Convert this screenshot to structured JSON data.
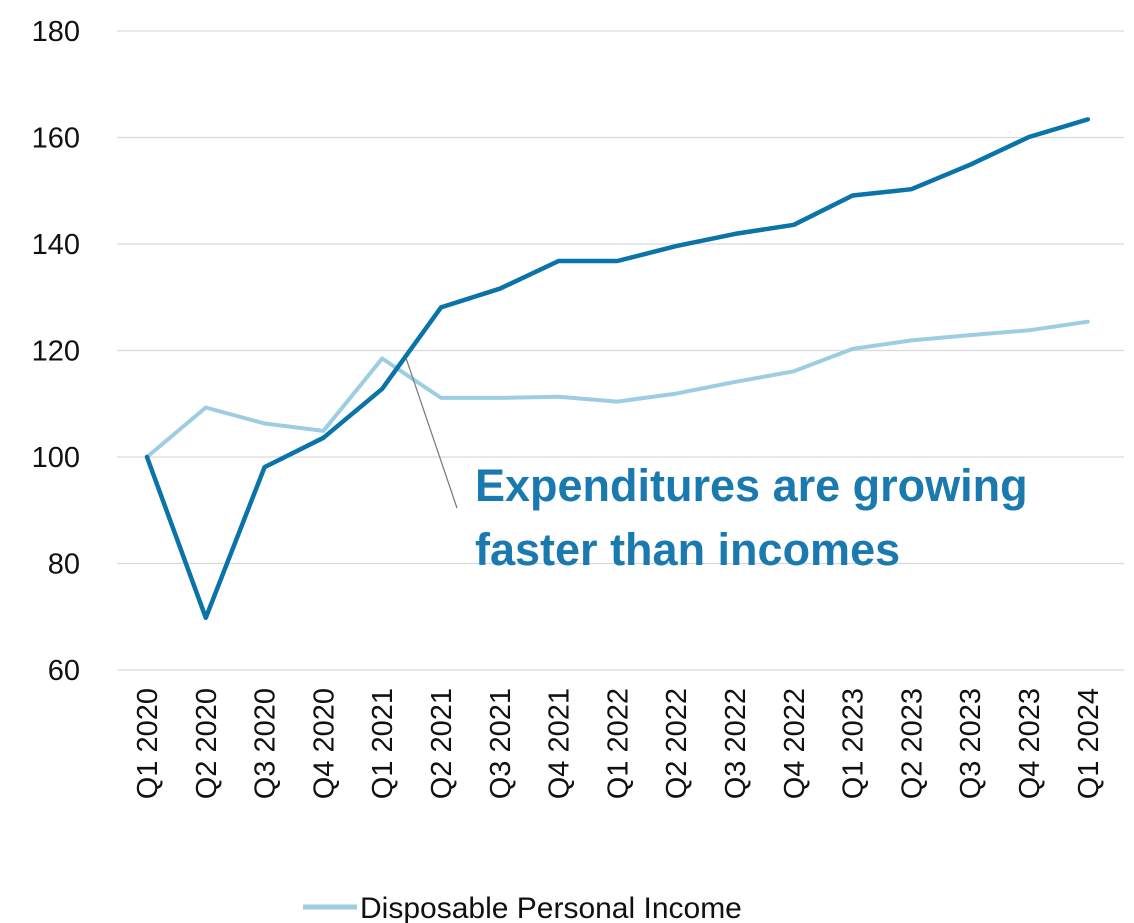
{
  "chart_data": {
    "type": "line",
    "categories": [
      "Q1 2020",
      "Q2 2020",
      "Q3 2020",
      "Q4 2020",
      "Q1 2021",
      "Q2 2021",
      "Q3 2021",
      "Q4 2021",
      "Q1 2022",
      "Q2 2022",
      "Q3 2022",
      "Q4 2022",
      "Q1 2023",
      "Q2 2023",
      "Q3 2023",
      "Q4 2023",
      "Q1 2024"
    ],
    "series": [
      {
        "name": "Disposable Personal Income",
        "color": "#9dcde3",
        "values": [
          100,
          109.3,
          106.3,
          104.9,
          118.5,
          111.1,
          111.1,
          111.3,
          110.4,
          111.9,
          114.1,
          116.1,
          120.3,
          121.9,
          122.9,
          123.8,
          125.4
        ]
      },
      {
        "color": "#0a73a8",
        "values": [
          100,
          69.8,
          98.1,
          103.6,
          112.8,
          128.1,
          131.6,
          136.8,
          136.8,
          139.6,
          141.9,
          143.6,
          149.1,
          150.3,
          154.9,
          160.1,
          163.4
        ]
      }
    ],
    "ylim": [
      60,
      180
    ],
    "yticks": [
      60,
      80,
      100,
      120,
      140,
      160,
      180
    ],
    "grid": true,
    "legend": "bottom",
    "annotation": {
      "lines": [
        "Expenditures are growing",
        "faster than incomes"
      ],
      "color": "#1a7ab0"
    }
  }
}
